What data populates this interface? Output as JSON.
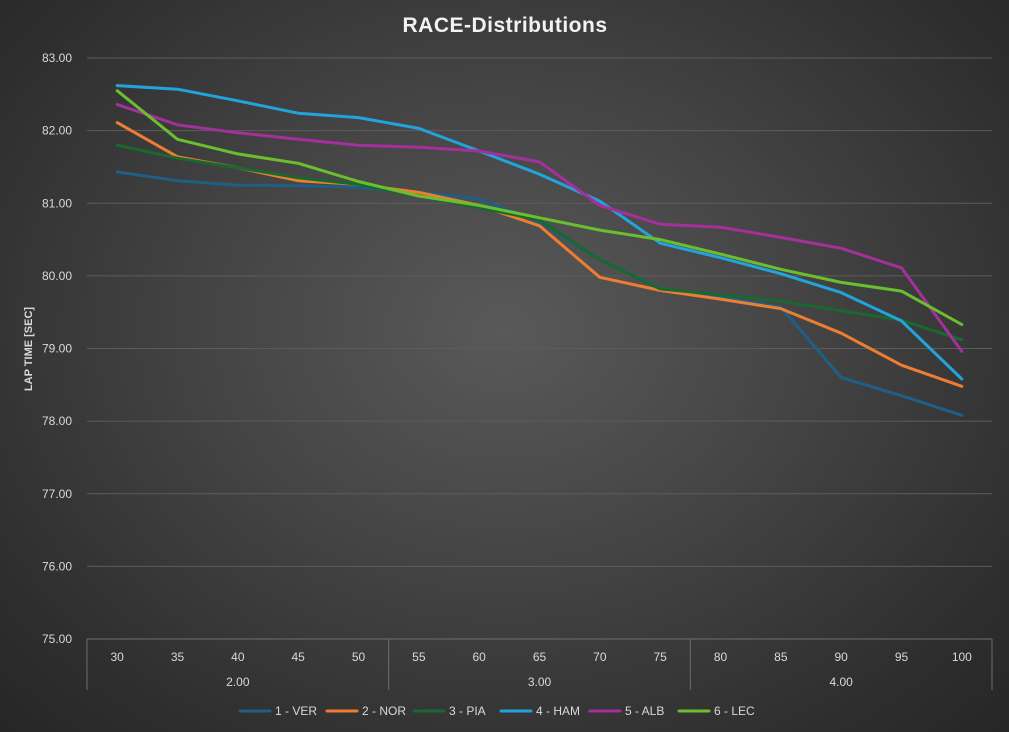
{
  "chart_data": {
    "type": "line",
    "title": "RACE-Distributions",
    "xlabel": "",
    "ylabel": "LAP TIME [SEC]",
    "ylim": [
      75,
      83
    ],
    "yticks": [
      "75.00",
      "76.00",
      "77.00",
      "78.00",
      "79.00",
      "80.00",
      "81.00",
      "82.00",
      "83.00"
    ],
    "categories": [
      "30",
      "35",
      "40",
      "45",
      "50",
      "55",
      "60",
      "65",
      "70",
      "75",
      "80",
      "85",
      "90",
      "95",
      "100"
    ],
    "groups": [
      {
        "label": "2.00",
        "count": 5
      },
      {
        "label": "3.00",
        "count": 5
      },
      {
        "label": "4.00",
        "count": 5
      }
    ],
    "grid": true,
    "legend_position": "bottom",
    "series": [
      {
        "name": "1 - VER",
        "color": "#1f5f86",
        "values": [
          81.43,
          81.31,
          81.25,
          81.24,
          81.22,
          81.15,
          81.06,
          80.74,
          80.22,
          79.83,
          79.71,
          79.57,
          78.6,
          78.35,
          78.08
        ]
      },
      {
        "name": "2 - NOR",
        "color": "#ed7d31",
        "values": [
          82.11,
          81.64,
          81.49,
          81.31,
          81.26,
          81.15,
          80.97,
          80.69,
          79.98,
          79.8,
          79.68,
          79.55,
          79.21,
          78.77,
          78.48
        ]
      },
      {
        "name": "3 - PIA",
        "color": "#17692f",
        "values": [
          81.8,
          81.62,
          81.49,
          81.35,
          81.26,
          81.1,
          80.94,
          80.77,
          80.22,
          79.82,
          79.74,
          79.65,
          79.52,
          79.39,
          79.12
        ]
      },
      {
        "name": "4 - HAM",
        "color": "#23a3dc",
        "values": [
          82.62,
          82.57,
          82.41,
          82.24,
          82.18,
          82.03,
          81.72,
          81.4,
          81.03,
          80.45,
          80.25,
          80.03,
          79.77,
          79.38,
          78.58
        ]
      },
      {
        "name": "5 - ALB",
        "color": "#a3309b",
        "values": [
          82.36,
          82.08,
          81.97,
          81.88,
          81.8,
          81.77,
          81.72,
          81.57,
          80.97,
          80.71,
          80.67,
          80.53,
          80.38,
          80.11,
          78.96
        ]
      },
      {
        "name": "6 - LEC",
        "color": "#6bbf2f",
        "values": [
          82.55,
          81.88,
          81.68,
          81.55,
          81.3,
          81.1,
          80.97,
          80.8,
          80.63,
          80.5,
          80.3,
          80.09,
          79.91,
          79.79,
          79.33
        ]
      }
    ]
  }
}
